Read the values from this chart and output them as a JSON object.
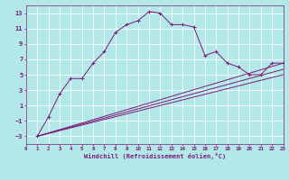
{
  "xlabel": "Windchill (Refroidissement éolien,°C)",
  "background_color": "#b2e8e8",
  "grid_color": "#ffffff",
  "line_color": "#7b1a7b",
  "xlim": [
    0,
    23
  ],
  "ylim": [
    -4,
    14
  ],
  "xticks": [
    0,
    1,
    2,
    3,
    4,
    5,
    6,
    7,
    8,
    9,
    10,
    11,
    12,
    13,
    14,
    15,
    16,
    17,
    18,
    19,
    20,
    21,
    22,
    23
  ],
  "yticks": [
    -3,
    -1,
    1,
    3,
    5,
    7,
    9,
    11,
    13
  ],
  "series": [
    {
      "x": [
        1,
        2,
        3,
        4,
        5,
        6,
        7,
        8,
        9,
        10,
        11,
        12,
        13,
        14,
        15,
        16,
        17,
        18,
        19,
        20,
        21,
        22,
        23
      ],
      "y": [
        -3,
        -0.5,
        2.5,
        4.5,
        4.5,
        6.5,
        8.0,
        10.5,
        11.5,
        12.0,
        13.2,
        13.0,
        11.5,
        11.5,
        11.2,
        7.5,
        8.0,
        6.5,
        6.0,
        5.0,
        5.0,
        6.5,
        6.5
      ],
      "marker": true
    },
    {
      "x": [
        1,
        23
      ],
      "y": [
        -3,
        6.5
      ],
      "marker": false
    },
    {
      "x": [
        1,
        23
      ],
      "y": [
        -3,
        5.0
      ],
      "marker": false
    },
    {
      "x": [
        1,
        23
      ],
      "y": [
        -3,
        5.7
      ],
      "marker": false
    }
  ]
}
